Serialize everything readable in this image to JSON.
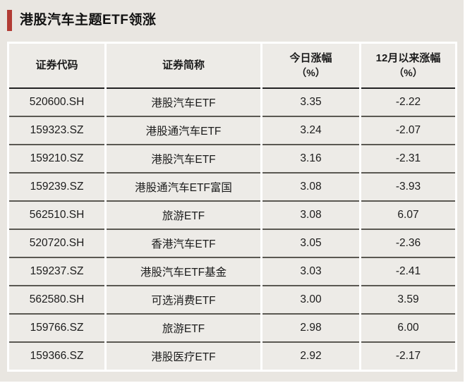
{
  "page": {
    "background": "#e9e6e1",
    "accent_color": "#b23c35"
  },
  "title": {
    "text": "港股汽车主题ETF领涨"
  },
  "table": {
    "headers": [
      {
        "line1": "证券代码",
        "line2": ""
      },
      {
        "line1": "证券简称",
        "line2": ""
      },
      {
        "line1": "今日涨幅",
        "line2": "（%）"
      },
      {
        "line1": "12月以来涨幅",
        "line2": "（%）"
      }
    ],
    "rows": [
      {
        "code": "520600.SH",
        "name": "港股汽车ETF",
        "today": "3.35",
        "since_dec": "-2.22"
      },
      {
        "code": "159323.SZ",
        "name": "港股通汽车ETF",
        "today": "3.24",
        "since_dec": "-2.07"
      },
      {
        "code": "159210.SZ",
        "name": "港股汽车ETF",
        "today": "3.16",
        "since_dec": "-2.31"
      },
      {
        "code": "159239.SZ",
        "name": "港股通汽车ETF富国",
        "today": "3.08",
        "since_dec": "-3.93"
      },
      {
        "code": "562510.SH",
        "name": "旅游ETF",
        "today": "3.08",
        "since_dec": "6.07"
      },
      {
        "code": "520720.SH",
        "name": "香港汽车ETF",
        "today": "3.05",
        "since_dec": "-2.36"
      },
      {
        "code": "159237.SZ",
        "name": "港股汽车ETF基金",
        "today": "3.03",
        "since_dec": "-2.41"
      },
      {
        "code": "562580.SH",
        "name": "可选消费ETF",
        "today": "3.00",
        "since_dec": "3.59"
      },
      {
        "code": "159766.SZ",
        "name": "旅游ETF",
        "today": "2.98",
        "since_dec": "6.00"
      },
      {
        "code": "159366.SZ",
        "name": "港股医疗ETF",
        "today": "2.92",
        "since_dec": "-2.17"
      }
    ]
  }
}
